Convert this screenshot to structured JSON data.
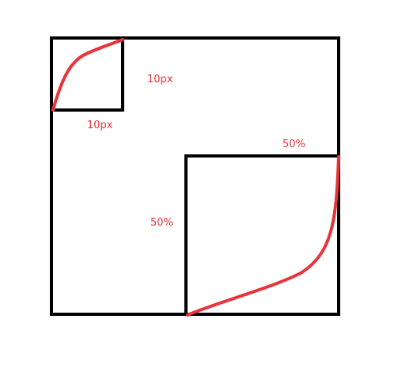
{
  "annotations": [
    "10px",
    "10px",
    "50%",
    "50%"
  ]
}
